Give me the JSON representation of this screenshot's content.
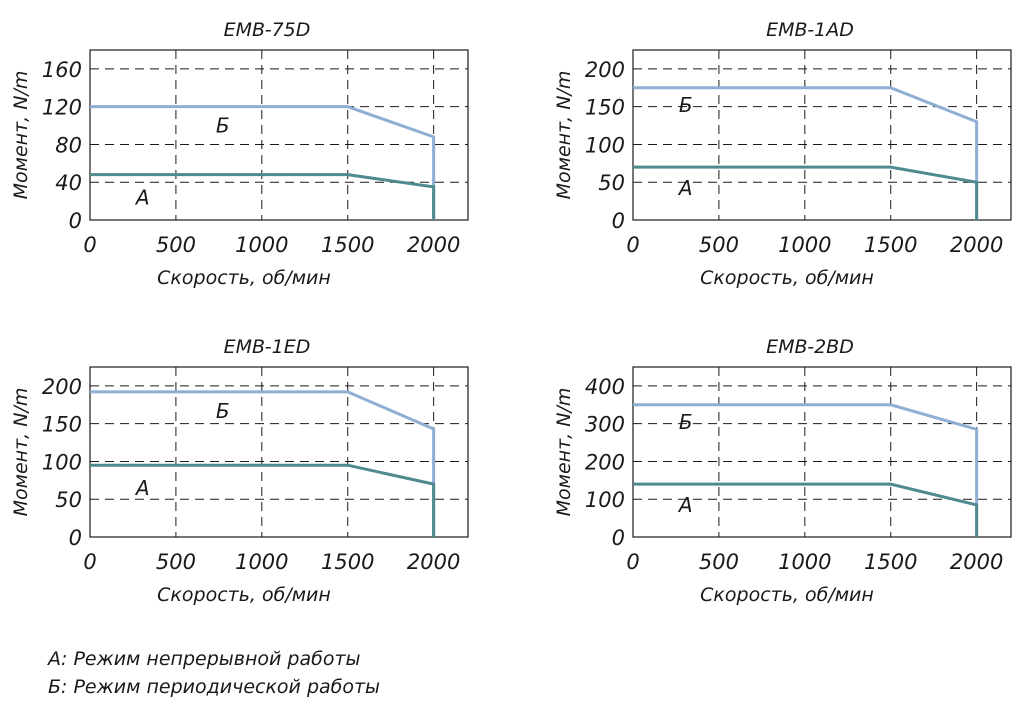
{
  "chart_data": [
    {
      "type": "line",
      "title": "EMB-75D",
      "xlabel": "Скорость, об/мин",
      "ylabel": "Момент, N/m",
      "xlim": [
        0,
        2200
      ],
      "ylim": [
        0,
        180
      ],
      "xticks": [
        0,
        500,
        1000,
        1500,
        2000
      ],
      "yticks": [
        0,
        40,
        80,
        120,
        160
      ],
      "grid": true,
      "series": [
        {
          "name": "Б",
          "x": [
            0,
            1500,
            2000,
            2000
          ],
          "y": [
            120,
            120,
            88,
            0
          ],
          "color": "#8eaed3"
        },
        {
          "name": "А",
          "x": [
            0,
            1500,
            2000,
            2000
          ],
          "y": [
            48,
            48,
            35,
            0
          ],
          "color": "#4f8a8f"
        }
      ]
    },
    {
      "type": "line",
      "title": "EMB-1AD",
      "xlabel": "Скорость, об/мин",
      "ylabel": "Момент, N/m",
      "xlim": [
        0,
        2200
      ],
      "ylim": [
        0,
        225
      ],
      "xticks": [
        0,
        500,
        1000,
        1500,
        2000
      ],
      "yticks": [
        0,
        50,
        100,
        150,
        200
      ],
      "grid": true,
      "series": [
        {
          "name": "Б",
          "x": [
            0,
            1500,
            2000,
            2000
          ],
          "y": [
            175,
            175,
            130,
            0
          ],
          "color": "#8eaed3"
        },
        {
          "name": "А",
          "x": [
            0,
            1500,
            2000,
            2000
          ],
          "y": [
            70,
            70,
            50,
            0
          ],
          "color": "#4f8a8f"
        }
      ]
    },
    {
      "type": "line",
      "title": "EMB-1ED",
      "xlabel": "Скорость, об/мин",
      "ylabel": "Момент, N/m",
      "xlim": [
        0,
        2200
      ],
      "ylim": [
        0,
        225
      ],
      "xticks": [
        0,
        500,
        1000,
        1500,
        2000
      ],
      "yticks": [
        0,
        50,
        100,
        150,
        200
      ],
      "grid": true,
      "series": [
        {
          "name": "Б",
          "x": [
            0,
            1500,
            2000,
            2000
          ],
          "y": [
            192,
            192,
            143,
            0
          ],
          "color": "#8eaed3"
        },
        {
          "name": "А",
          "x": [
            0,
            1500,
            2000,
            2000
          ],
          "y": [
            95,
            95,
            70,
            0
          ],
          "color": "#4f8a8f"
        }
      ]
    },
    {
      "type": "line",
      "title": "EMB-2BD",
      "xlabel": "Скорость, об/мин",
      "ylabel": "Момент, N/m",
      "xlim": [
        0,
        2200
      ],
      "ylim": [
        0,
        450
      ],
      "xticks": [
        0,
        500,
        1000,
        1500,
        2000
      ],
      "yticks": [
        0,
        100,
        200,
        300,
        400
      ],
      "grid": true,
      "series": [
        {
          "name": "Б",
          "x": [
            0,
            1500,
            2000,
            2000
          ],
          "y": [
            350,
            350,
            285,
            0
          ],
          "color": "#8eaed3"
        },
        {
          "name": "А",
          "x": [
            0,
            1500,
            2000,
            2000
          ],
          "y": [
            140,
            140,
            85,
            0
          ],
          "color": "#4f8a8f"
        }
      ]
    }
  ],
  "legend": {
    "line_a": "А: Режим непрерывной работы",
    "line_b": "Б: Режим периодической работы"
  }
}
